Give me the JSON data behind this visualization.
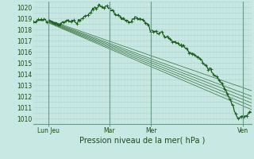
{
  "xlabel": "Pression niveau de la mer( hPa )",
  "ylim": [
    1009.5,
    1020.5
  ],
  "yticks": [
    1010,
    1011,
    1012,
    1013,
    1014,
    1015,
    1016,
    1017,
    1018,
    1019,
    1020
  ],
  "xtick_labels": [
    "Lun Jeu",
    "Mar",
    "Mer",
    "Ven"
  ],
  "xtick_positions": [
    0.07,
    0.35,
    0.54,
    0.96
  ],
  "day_lines": [
    0.07,
    0.35,
    0.54,
    0.96
  ],
  "bg_color": "#c8e8e4",
  "grid_color_h": "#a8d0cc",
  "grid_color_v": "#b8d8d4",
  "line_color": "#1a5c1a",
  "forecast_color": "#1a5c1a",
  "n_points": 400,
  "forecast_starts": [
    1018.85,
    1018.8,
    1018.75,
    1018.7,
    1018.65,
    1018.6
  ],
  "forecast_ends": [
    1012.5,
    1012.0,
    1011.7,
    1011.4,
    1011.1,
    1010.8
  ]
}
